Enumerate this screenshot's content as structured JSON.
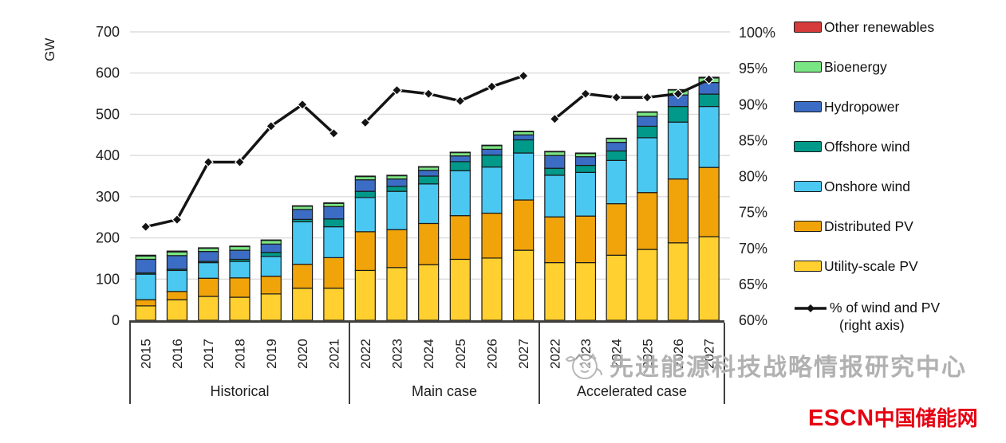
{
  "chart_data": {
    "type": "bar",
    "subtype": "stacked-bar-with-line",
    "title": "",
    "unit_label": "GW",
    "grid": true,
    "legend_position": "right",
    "left_axis": {
      "label": "GW",
      "min": 0,
      "max": 700,
      "tick_step": 100
    },
    "right_axis": {
      "min": 60,
      "max": 100,
      "tick_step": 5,
      "suffix": "%"
    },
    "groups": [
      {
        "label": "Historical",
        "years": [
          "2015",
          "2016",
          "2017",
          "2018",
          "2019",
          "2020",
          "2021"
        ]
      },
      {
        "label": "Main case",
        "years": [
          "2022",
          "2023",
          "2024",
          "2025",
          "2026",
          "2027"
        ]
      },
      {
        "label": "Accelerated case",
        "years": [
          "2022",
          "2023",
          "2024",
          "2025",
          "2026",
          "2027"
        ]
      }
    ],
    "series": [
      {
        "name": "Utility-scale PV",
        "color": "#FFD02F",
        "values": [
          [
            35,
            50,
            58,
            56,
            64,
            78,
            78
          ],
          [
            121,
            128,
            135,
            148,
            151,
            170
          ],
          [
            140,
            140,
            158,
            172,
            188,
            203
          ]
        ]
      },
      {
        "name": "Distributed PV",
        "color": "#F0A40A",
        "values": [
          [
            15,
            20,
            44,
            47,
            43,
            58,
            74
          ],
          [
            94,
            92,
            100,
            106,
            109,
            122
          ],
          [
            111,
            113,
            125,
            138,
            155,
            168
          ]
        ]
      },
      {
        "name": "Onshore wind",
        "color": "#4AC8F2",
        "values": [
          [
            62,
            51,
            38,
            40,
            48,
            103,
            75
          ],
          [
            83,
            93,
            96,
            109,
            112,
            114
          ],
          [
            101,
            106,
            105,
            133,
            138,
            148
          ]
        ]
      },
      {
        "name": "Offshore wind",
        "color": "#00998A",
        "values": [
          [
            3,
            3,
            3,
            5,
            10,
            6,
            19
          ],
          [
            15,
            12,
            19,
            22,
            29,
            32
          ],
          [
            17,
            17,
            23,
            28,
            38,
            30
          ]
        ]
      },
      {
        "name": "Hydropower",
        "color": "#3C6DC5",
        "values": [
          [
            33,
            33,
            24,
            22,
            20,
            24,
            30
          ],
          [
            28,
            18,
            14,
            14,
            14,
            12
          ],
          [
            31,
            21,
            21,
            24,
            28,
            28
          ]
        ]
      },
      {
        "name": "Bioenergy",
        "color": "#79E583",
        "values": [
          [
            8,
            9,
            8,
            9,
            9,
            8,
            8
          ],
          [
            8,
            8,
            8,
            8,
            9,
            8
          ],
          [
            9,
            8,
            9,
            10,
            12,
            11
          ]
        ]
      },
      {
        "name": "Other renewables",
        "color": "#D63C3C",
        "values": [
          [
            2,
            2,
            1,
            1,
            1,
            1,
            1
          ],
          [
            1,
            1,
            1,
            1,
            1,
            1
          ],
          [
            1,
            1,
            1,
            1,
            1,
            2
          ]
        ]
      }
    ],
    "line_series": {
      "name": "% of wind and PV",
      "name_line2": "(right axis)",
      "color": "#141414",
      "axis": "right",
      "values": [
        [
          73,
          74,
          82,
          82,
          87,
          90,
          86
        ],
        [
          87.5,
          92,
          91.5,
          90.5,
          92.5,
          94
        ],
        [
          88,
          91.5,
          91,
          91,
          91.5,
          93.5
        ]
      ]
    }
  },
  "watermark": {
    "text": "先进能源科技战略情报研究中心"
  },
  "logo": {
    "latin": "ESCN",
    "cn": "中国储能网"
  }
}
